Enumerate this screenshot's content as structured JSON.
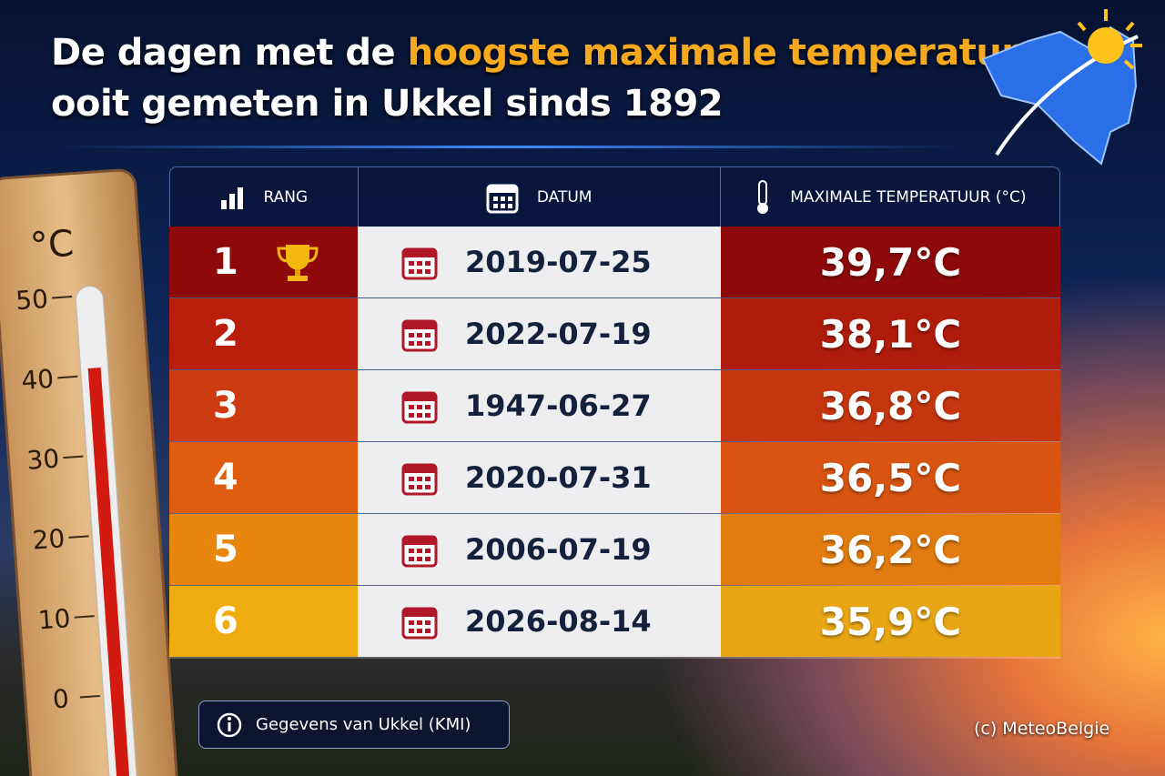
{
  "title": {
    "parts": [
      "De dagen met de",
      "hoogste maximale temperaturen",
      "ooit gemeten in Ukkel sinds 1892"
    ]
  },
  "thermometer": {
    "unit": "°C",
    "labels": [
      "50",
      "40",
      "30",
      "20",
      "10",
      "0"
    ]
  },
  "table": {
    "headers": [
      "RANG",
      "DATUM",
      "MAXIMALE TEMPERATUUR (°C)"
    ],
    "rows": [
      [
        "1",
        "2019-07-25",
        "39,7°C"
      ],
      [
        "2",
        "2022-07-19",
        "38,1°C"
      ],
      [
        "3",
        "1947-06-27",
        "36,8°C"
      ],
      [
        "4",
        "2020-07-31",
        "36,5°C"
      ],
      [
        "5",
        "2006-07-19",
        "36,2°C"
      ],
      [
        "6",
        "2026-08-14",
        "35,9°C"
      ]
    ]
  },
  "footer": {
    "note": "Gegevens van Ukkel (KMI)",
    "credit": "(c) MeteoBelgie"
  }
}
